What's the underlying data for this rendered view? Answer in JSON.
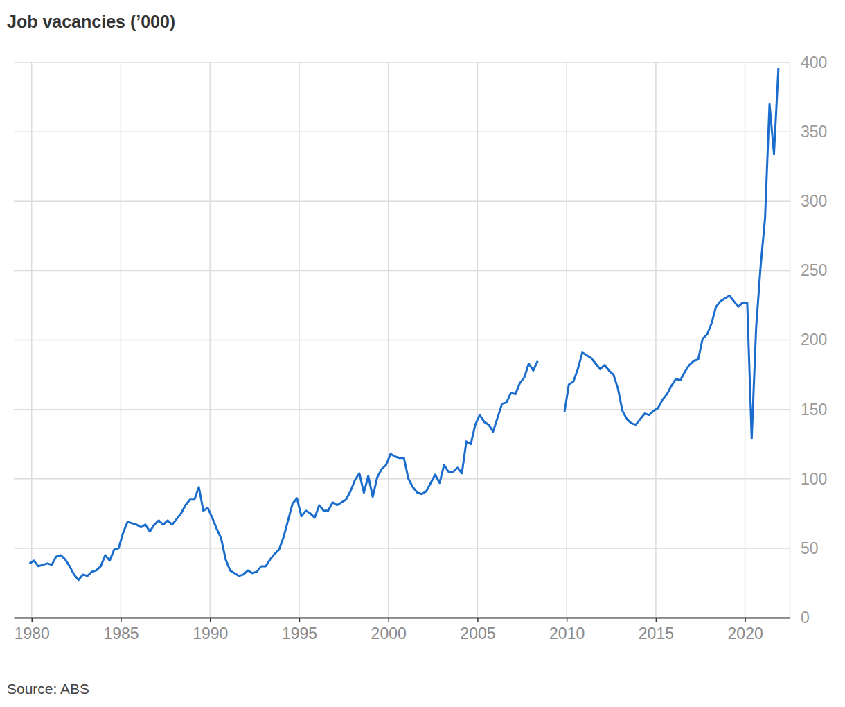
{
  "chart_data": {
    "type": "line",
    "title": "Job vacancies (’000)",
    "source": "Source: ABS",
    "color": "#1a6dcc",
    "grid": true,
    "xlim": [
      1979,
      2022.5
    ],
    "xticks": [
      1980,
      1985,
      1990,
      1995,
      2000,
      2005,
      2010,
      2015,
      2020
    ],
    "ylim": [
      0,
      400
    ],
    "yticks": [
      0,
      50,
      100,
      150,
      200,
      250,
      300,
      350,
      400
    ],
    "x": [
      1979.875,
      1980.125,
      1980.375,
      1980.625,
      1980.875,
      1981.125,
      1981.375,
      1981.625,
      1981.875,
      1982.125,
      1982.375,
      1982.625,
      1982.875,
      1983.125,
      1983.375,
      1983.625,
      1983.875,
      1984.125,
      1984.375,
      1984.625,
      1984.875,
      1985.125,
      1985.375,
      1985.625,
      1985.875,
      1986.125,
      1986.375,
      1986.625,
      1986.875,
      1987.125,
      1987.375,
      1987.625,
      1987.875,
      1988.125,
      1988.375,
      1988.625,
      1988.875,
      1989.125,
      1989.375,
      1989.625,
      1989.875,
      1990.125,
      1990.375,
      1990.625,
      1990.875,
      1991.125,
      1991.375,
      1991.625,
      1991.875,
      1992.125,
      1992.375,
      1992.625,
      1992.875,
      1993.125,
      1993.375,
      1993.625,
      1993.875,
      1994.125,
      1994.375,
      1994.625,
      1994.875,
      1995.125,
      1995.375,
      1995.625,
      1995.875,
      1996.125,
      1996.375,
      1996.625,
      1996.875,
      1997.125,
      1997.375,
      1997.625,
      1997.875,
      1998.125,
      1998.375,
      1998.625,
      1998.875,
      1999.125,
      1999.375,
      1999.625,
      1999.875,
      2000.125,
      2000.375,
      2000.625,
      2000.875,
      2001.125,
      2001.375,
      2001.625,
      2001.875,
      2002.125,
      2002.375,
      2002.625,
      2002.875,
      2003.125,
      2003.375,
      2003.625,
      2003.875,
      2004.125,
      2004.375,
      2004.625,
      2004.875,
      2005.125,
      2005.375,
      2005.625,
      2005.875,
      2006.125,
      2006.375,
      2006.625,
      2006.875,
      2007.125,
      2007.375,
      2007.625,
      2007.875,
      2008.125,
      2008.375,
      2008.625,
      2008.875,
      2009.125,
      2009.375,
      2009.625,
      2009.875,
      2010.125,
      2010.375,
      2010.625,
      2010.875,
      2011.125,
      2011.375,
      2011.625,
      2011.875,
      2012.125,
      2012.375,
      2012.625,
      2012.875,
      2013.125,
      2013.375,
      2013.625,
      2013.875,
      2014.125,
      2014.375,
      2014.625,
      2014.875,
      2015.125,
      2015.375,
      2015.625,
      2015.875,
      2016.125,
      2016.375,
      2016.625,
      2016.875,
      2017.125,
      2017.375,
      2017.625,
      2017.875,
      2018.125,
      2018.375,
      2018.625,
      2018.875,
      2019.125,
      2019.375,
      2019.625,
      2019.875,
      2020.125,
      2020.375,
      2020.625,
      2020.875,
      2021.125,
      2021.375,
      2021.625,
      2021.875
    ],
    "values": [
      39,
      41,
      37,
      38,
      39,
      38,
      44,
      45,
      42,
      37,
      31,
      27,
      31,
      30,
      33,
      34,
      37,
      45,
      41,
      49,
      50,
      61,
      69,
      68,
      67,
      65,
      67,
      62,
      67,
      70,
      67,
      70,
      67,
      71,
      75,
      81,
      85,
      85,
      94,
      77,
      79,
      72,
      64,
      57,
      42,
      34,
      32,
      30,
      31,
      34,
      32,
      33,
      37,
      37,
      42,
      46,
      49,
      58,
      70,
      82,
      86,
      73,
      77,
      75,
      72,
      81,
      77,
      77,
      83,
      81,
      83,
      85,
      91,
      99,
      104,
      90,
      102,
      87,
      101,
      107,
      110,
      118,
      116,
      115,
      115,
      100,
      94,
      90,
      89,
      91,
      97,
      103,
      97,
      110,
      105,
      105,
      108,
      104,
      127,
      125,
      139,
      146,
      141,
      139,
      134,
      144,
      154,
      155,
      162,
      161,
      169,
      173,
      183,
      178,
      185,
      null,
      null,
      null,
      null,
      null,
      148,
      168,
      170,
      179,
      191,
      189,
      187,
      183,
      179,
      182,
      178,
      175,
      165,
      149,
      143,
      140,
      139,
      143,
      147,
      146,
      149,
      151,
      157,
      161,
      167,
      172,
      171,
      177,
      182,
      185,
      186,
      201,
      204,
      212,
      224,
      228,
      230,
      232,
      228,
      224,
      227,
      227,
      129,
      209,
      253,
      288,
      370,
      334,
      396
    ]
  }
}
